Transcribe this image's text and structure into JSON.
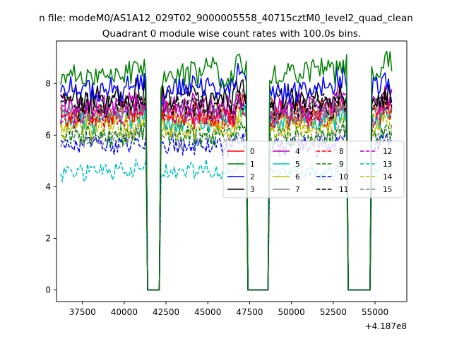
{
  "figure": {
    "suptitle": "n file: modeM0/AS1A12_029T02_9000005558_40715cztM0_level2_quad_clean"
  },
  "chart_data": {
    "type": "line",
    "title": "Quadrant 0 module wise count rates with 100.0s bins.",
    "xlabel": "",
    "ylabel": "",
    "x_offset_label": "+4.187e8",
    "xlim": [
      35950,
      56900
    ],
    "ylim": [
      -0.45,
      9.65
    ],
    "x_ticks": [
      37500,
      40000,
      42500,
      45000,
      47500,
      50000,
      52500,
      55000
    ],
    "x_tick_labels": [
      "37500",
      "40000",
      "42500",
      "45000",
      "47500",
      "50000",
      "52500",
      "55000"
    ],
    "y_ticks": [
      0,
      2,
      4,
      6,
      8
    ],
    "y_tick_labels": [
      "0",
      "2",
      "4",
      "6",
      "8"
    ],
    "grid": false,
    "legend_position": "center-right",
    "legend_columns": 4,
    "segments": [
      {
        "start": 36200,
        "end": 41300
      },
      {
        "start": 42200,
        "end": 47300
      },
      {
        "start": 48700,
        "end": 53300
      },
      {
        "start": 54800,
        "end": 56000
      }
    ],
    "gaps": [
      {
        "start": 41300,
        "end": 42200
      },
      {
        "start": 47300,
        "end": 48700
      },
      {
        "start": 53300,
        "end": 54800
      }
    ],
    "series": [
      {
        "name": "0",
        "color": "#ff0000",
        "style": "solid",
        "level": 6.9
      },
      {
        "name": "1",
        "color": "#008000",
        "style": "solid",
        "level": 8.4
      },
      {
        "name": "2",
        "color": "#0000ff",
        "style": "solid",
        "level": 7.8
      },
      {
        "name": "3",
        "color": "#000000",
        "style": "solid",
        "level": 7.4
      },
      {
        "name": "4",
        "color": "#bf00bf",
        "style": "solid",
        "level": 7.2
      },
      {
        "name": "5",
        "color": "#00bfbf",
        "style": "solid",
        "level": 6.6
      },
      {
        "name": "6",
        "color": "#bfbf00",
        "style": "solid",
        "level": 6.5
      },
      {
        "name": "7",
        "color": "#808080",
        "style": "solid",
        "level": 7.0
      },
      {
        "name": "8",
        "color": "#ff0000",
        "style": "dashed",
        "level": 6.7
      },
      {
        "name": "9",
        "color": "#008000",
        "style": "dashed",
        "level": 6.0
      },
      {
        "name": "10",
        "color": "#0000ff",
        "style": "dashed",
        "level": 5.6
      },
      {
        "name": "11",
        "color": "#000000",
        "style": "dashed",
        "level": 7.1
      },
      {
        "name": "12",
        "color": "#bf00bf",
        "style": "dashed",
        "level": 6.8
      },
      {
        "name": "13",
        "color": "#00bfbf",
        "style": "dashed",
        "level": 4.6
      },
      {
        "name": "14",
        "color": "#bfbf00",
        "style": "dashed",
        "level": 6.3
      },
      {
        "name": "15",
        "color": "#808080",
        "style": "dashed",
        "level": 5.9
      }
    ]
  }
}
